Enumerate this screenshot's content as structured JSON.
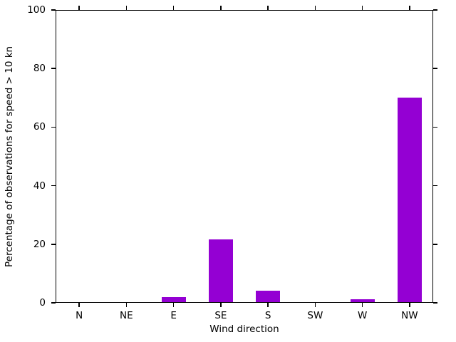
{
  "chart_data": {
    "type": "bar",
    "categories": [
      "N",
      "NE",
      "E",
      "SE",
      "S",
      "SW",
      "W",
      "NW"
    ],
    "values": [
      0,
      0,
      1.9,
      21.7,
      4.2,
      0,
      1.1,
      70.1
    ],
    "title": "",
    "xlabel": "Wind direction",
    "ylabel": "Percentage of observations for speed > 10 kn",
    "ylim": [
      0,
      100
    ],
    "yticks": [
      0,
      20,
      40,
      60,
      80,
      100
    ],
    "bar_color": "#9400D3",
    "axis_color": "#000000",
    "grid": false,
    "legend": "none",
    "tick_style": "outward ticks mirrored on all four sides"
  }
}
